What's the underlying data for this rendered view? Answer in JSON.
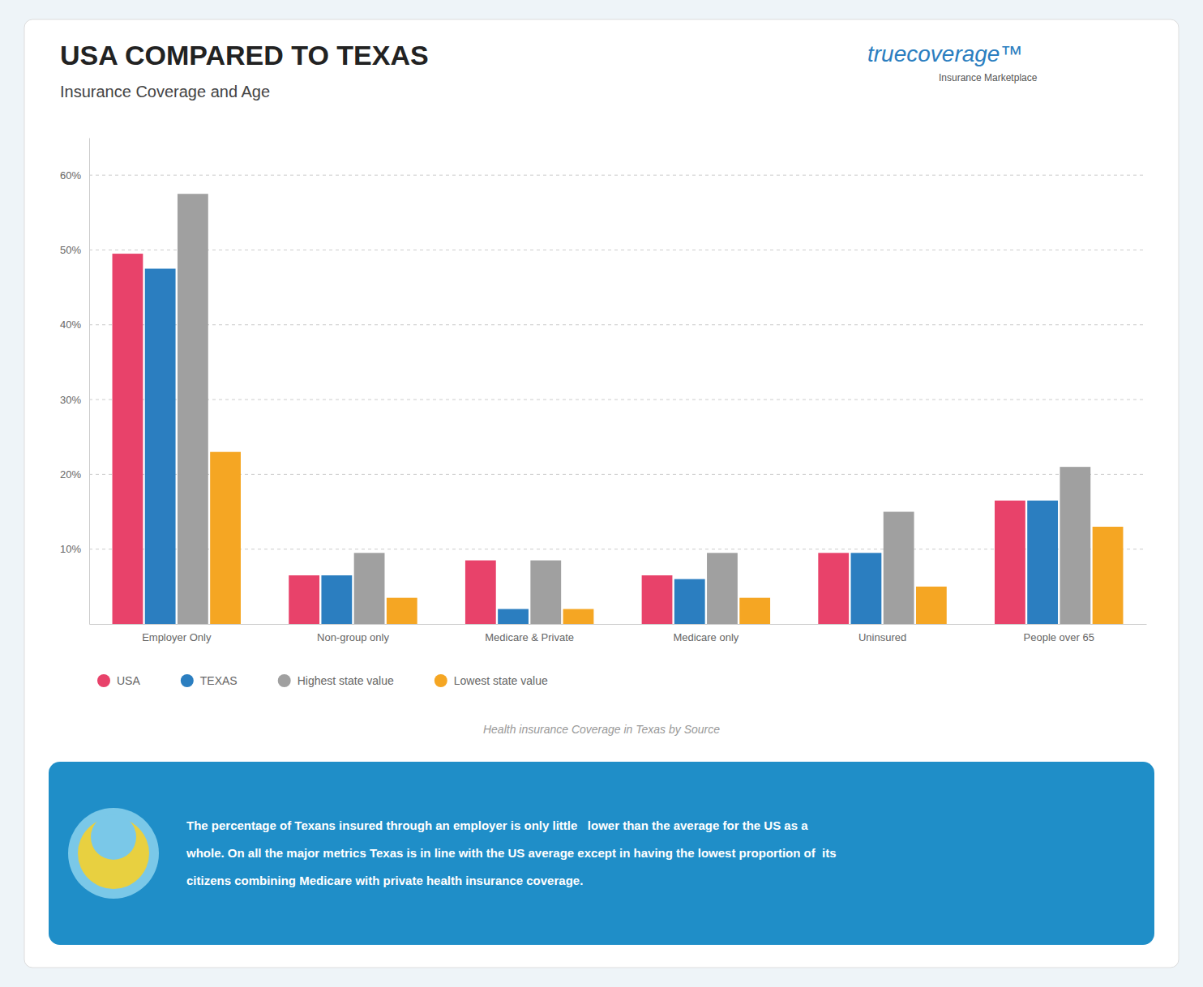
{
  "chart_data": {
    "type": "bar",
    "title": "USA COMPARED TO TEXAS",
    "subtitle": "Insurance Coverage and Age",
    "categories": [
      "Employer Only",
      "Non-group only",
      "Medicare & Private",
      "Medicare only",
      "Uninsured",
      "People over 65"
    ],
    "series": [
      {
        "name": "USA",
        "color": "#E8426A",
        "values": [
          49.5,
          6.5,
          8.5,
          6.5,
          9.5,
          16.5
        ]
      },
      {
        "name": "TEXAS",
        "color": "#2B7EC0",
        "values": [
          47.5,
          6.5,
          2.0,
          6.0,
          9.5,
          16.5
        ]
      },
      {
        "name": "Highest state value",
        "color": "#A0A0A0",
        "values": [
          57.5,
          9.5,
          8.5,
          9.5,
          15.0,
          21.0
        ]
      },
      {
        "name": "Lowest state value",
        "color": "#F5A623",
        "values": [
          23.0,
          3.5,
          2.0,
          3.5,
          5.0,
          13.0
        ]
      }
    ],
    "ylim": [
      0,
      65
    ],
    "yticks": [
      {
        "value": 10,
        "label": "10%"
      },
      {
        "value": 20,
        "label": "20%"
      },
      {
        "value": 30,
        "label": "30%"
      },
      {
        "value": 40,
        "label": "40%"
      },
      {
        "value": 50,
        "label": "50%"
      },
      {
        "value": 60,
        "label": "60%"
      }
    ],
    "grid": true,
    "legend": "bottom",
    "annotations": [
      "truecoverage™",
      "Insurance Marketplace",
      "Health insurance Coverage in Texas by Source",
      "The percentage of Texans insured through an employer is only little   lower than the average for the US as a",
      "whole. On all the major metrics Texas is in line with the US average except in having the lowest proportion of  its",
      "citizens combining Medicare with private health insurance coverage."
    ]
  }
}
